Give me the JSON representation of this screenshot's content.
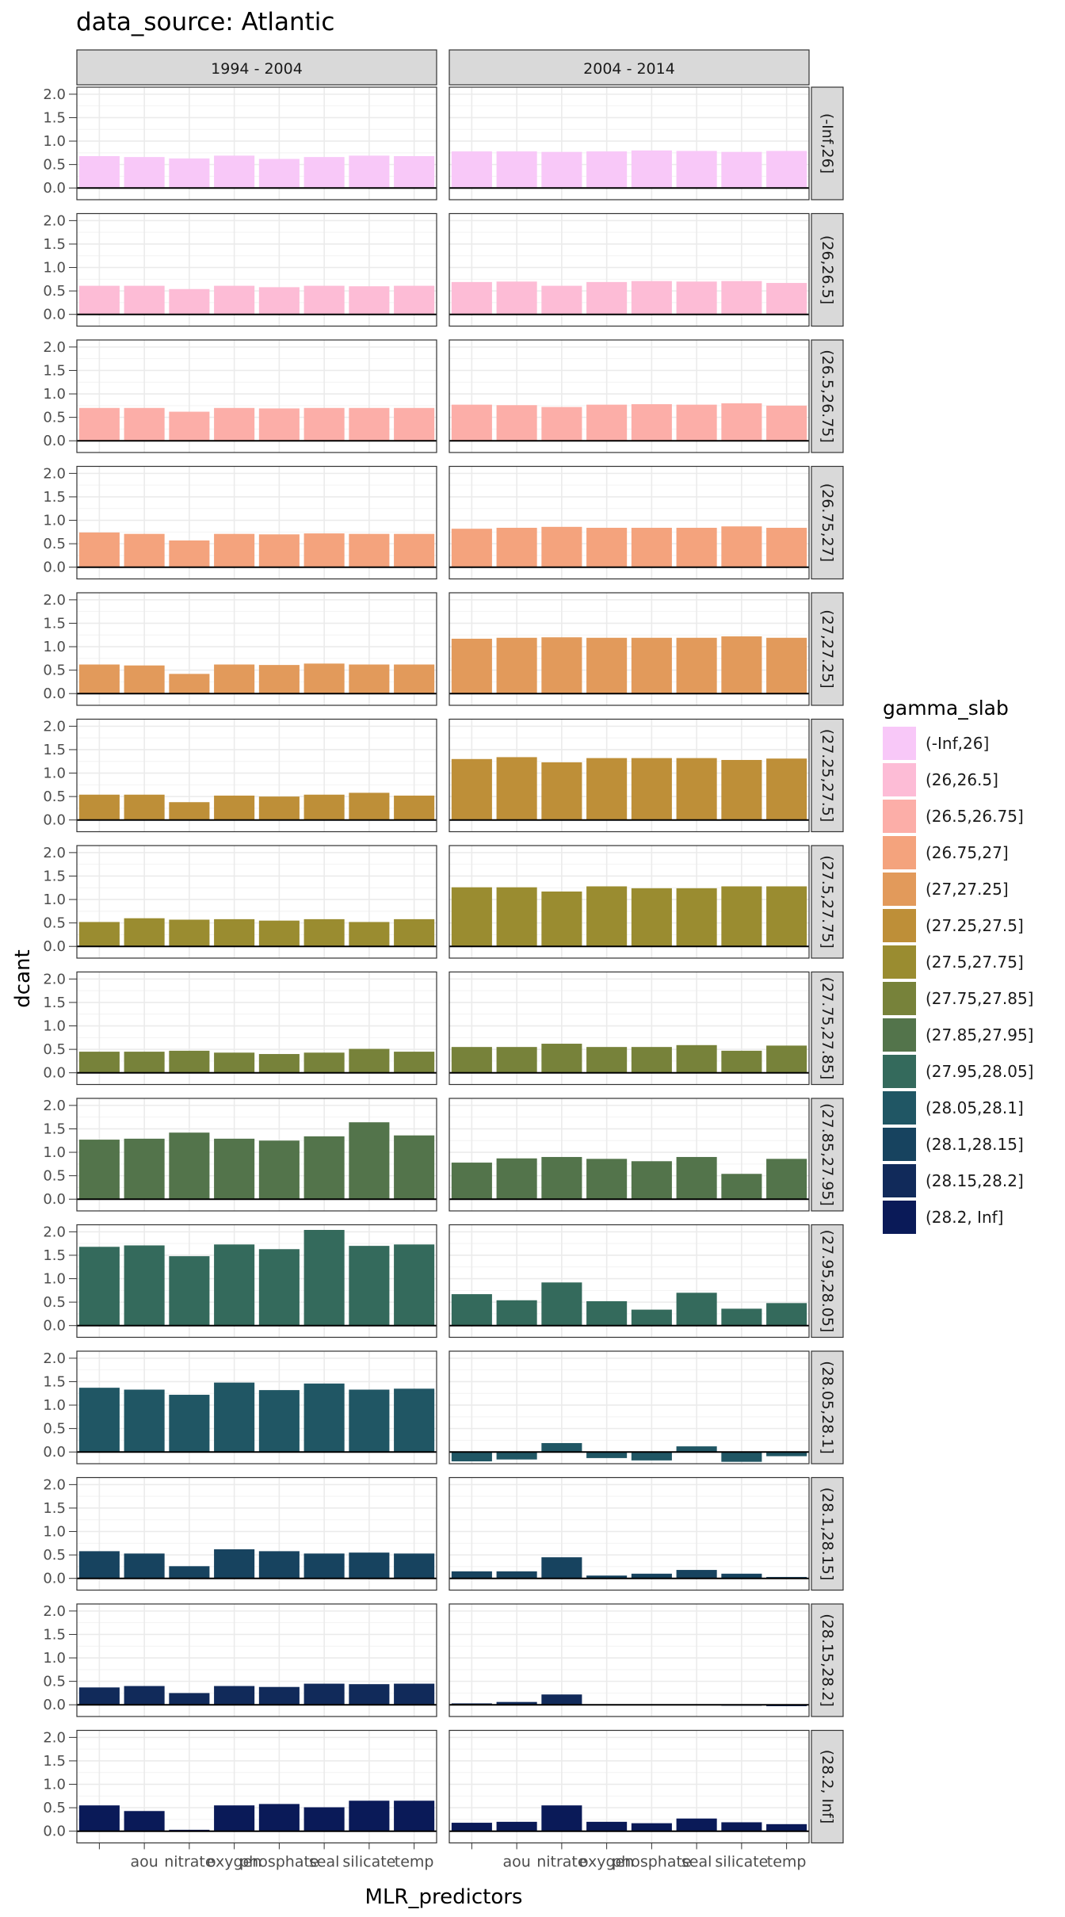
{
  "chart_data": {
    "type": "bar",
    "title": "data_source: Atlantic",
    "xlabel": "MLR_predictors",
    "ylabel": "dcant",
    "ylim": [
      -0.25,
      2.15
    ],
    "yticks": [
      "0.0",
      "0.5",
      "1.0",
      "1.5",
      "2.0"
    ],
    "grid": true,
    "legend_placement": "right",
    "legend_title": "gamma_slab",
    "categories": [
      "",
      "aou",
      "nitrate",
      "oxygen",
      "phosphate",
      "phosphate_star",
      "silicate",
      "temp"
    ],
    "category_tick_labels": [
      "",
      "aou",
      "nitrate",
      "oxygen",
      "phosphate",
      "",
      "silicate",
      "temp"
    ],
    "overlapping_tick_labels": [
      "oxygen",
      "phosphate",
      "seal"
    ],
    "columns": [
      "1994 - 2004",
      "2004 - 2014"
    ],
    "rows": [
      {
        "label": "(-Inf,26]",
        "color": "#F8C8F8",
        "values": [
          [
            0.68,
            0.66,
            0.63,
            0.69,
            0.62,
            0.66,
            0.69,
            0.68
          ],
          [
            0.78,
            0.78,
            0.77,
            0.78,
            0.8,
            0.79,
            0.77,
            0.79
          ]
        ]
      },
      {
        "label": "(26,26.5]",
        "color": "#FDBCD6",
        "values": [
          [
            0.61,
            0.61,
            0.54,
            0.61,
            0.58,
            0.61,
            0.6,
            0.61
          ],
          [
            0.69,
            0.7,
            0.61,
            0.69,
            0.71,
            0.7,
            0.71,
            0.67
          ]
        ]
      },
      {
        "label": "(26.5,26.75]",
        "color": "#FCAEA8",
        "values": [
          [
            0.7,
            0.7,
            0.62,
            0.7,
            0.69,
            0.7,
            0.7,
            0.7
          ],
          [
            0.77,
            0.76,
            0.72,
            0.77,
            0.78,
            0.77,
            0.8,
            0.75
          ]
        ]
      },
      {
        "label": "(26.75,27]",
        "color": "#F4A37D",
        "values": [
          [
            0.74,
            0.71,
            0.57,
            0.71,
            0.7,
            0.72,
            0.71,
            0.71
          ],
          [
            0.82,
            0.84,
            0.86,
            0.84,
            0.84,
            0.84,
            0.87,
            0.84
          ]
        ]
      },
      {
        "label": "(27,27.25]",
        "color": "#E29A5B",
        "values": [
          [
            0.62,
            0.6,
            0.42,
            0.62,
            0.61,
            0.64,
            0.62,
            0.62
          ],
          [
            1.17,
            1.19,
            1.2,
            1.19,
            1.19,
            1.19,
            1.22,
            1.19
          ]
        ]
      },
      {
        "label": "(27.25,27.5]",
        "color": "#BE8F38",
        "values": [
          [
            0.54,
            0.54,
            0.38,
            0.52,
            0.5,
            0.54,
            0.58,
            0.52
          ],
          [
            1.3,
            1.34,
            1.23,
            1.32,
            1.32,
            1.32,
            1.28,
            1.31
          ]
        ]
      },
      {
        "label": "(27.5,27.75]",
        "color": "#9A8C30",
        "values": [
          [
            0.52,
            0.6,
            0.57,
            0.58,
            0.55,
            0.58,
            0.52,
            0.58
          ],
          [
            1.26,
            1.26,
            1.17,
            1.28,
            1.24,
            1.24,
            1.28,
            1.28
          ]
        ]
      },
      {
        "label": "(27.75,27.85]",
        "color": "#77823A",
        "values": [
          [
            0.45,
            0.45,
            0.47,
            0.43,
            0.4,
            0.43,
            0.51,
            0.45
          ],
          [
            0.55,
            0.55,
            0.62,
            0.55,
            0.55,
            0.59,
            0.47,
            0.58
          ]
        ]
      },
      {
        "label": "(27.85,27.95]",
        "color": "#53744B",
        "values": [
          [
            1.27,
            1.29,
            1.42,
            1.29,
            1.25,
            1.34,
            1.64,
            1.36
          ],
          [
            0.78,
            0.87,
            0.9,
            0.86,
            0.81,
            0.9,
            0.54,
            0.86
          ]
        ]
      },
      {
        "label": "(27.95,28.05]",
        "color": "#346A5C",
        "values": [
          [
            1.68,
            1.71,
            1.48,
            1.73,
            1.63,
            2.04,
            1.7,
            1.73
          ],
          [
            0.67,
            0.54,
            0.92,
            0.52,
            0.34,
            0.7,
            0.36,
            0.48
          ]
        ]
      },
      {
        "label": "(28.05,28.1]",
        "color": "#205664",
        "values": [
          [
            1.37,
            1.33,
            1.22,
            1.48,
            1.32,
            1.46,
            1.33,
            1.35
          ],
          [
            -0.2,
            -0.16,
            0.19,
            -0.13,
            -0.18,
            0.12,
            -0.21,
            -0.09
          ]
        ]
      },
      {
        "label": "(28.1,28.15]",
        "color": "#17435F",
        "values": [
          [
            0.58,
            0.53,
            0.26,
            0.62,
            0.58,
            0.53,
            0.55,
            0.53
          ],
          [
            0.15,
            0.15,
            0.45,
            0.06,
            0.1,
            0.18,
            0.1,
            0.03
          ]
        ]
      },
      {
        "label": "(28.15,28.2]",
        "color": "#112A5A",
        "values": [
          [
            0.37,
            0.4,
            0.25,
            0.4,
            0.38,
            0.45,
            0.44,
            0.45
          ],
          [
            0.03,
            0.06,
            0.22,
            0.01,
            0.01,
            0.01,
            -0.02,
            -0.03
          ]
        ]
      },
      {
        "label": "(28.2, Inf]",
        "color": "#0A1A58",
        "values": [
          [
            0.55,
            0.43,
            0.03,
            0.55,
            0.58,
            0.51,
            0.65,
            0.65
          ],
          [
            0.18,
            0.2,
            0.55,
            0.2,
            0.17,
            0.27,
            0.19,
            0.15
          ]
        ]
      }
    ]
  }
}
